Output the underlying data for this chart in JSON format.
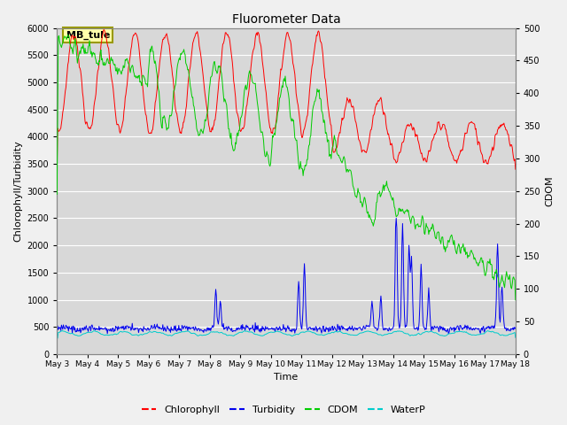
{
  "title": "Fluorometer Data",
  "xlabel": "Time",
  "ylabel_left": "Chlorophyll/Turbidity",
  "ylabel_right": "CDOM",
  "annotation_text": "MB_tule",
  "xlim_days": [
    0,
    15
  ],
  "ylim_left": [
    0,
    6000
  ],
  "ylim_right": [
    0,
    500
  ],
  "xtick_labels": [
    "May 3",
    "May 4",
    "May 5",
    "May 6",
    "May 7",
    "May 8",
    "May 9",
    "May 10",
    "May 11",
    "May 12",
    "May 13",
    "May 14",
    "May 15",
    "May 16",
    "May 17",
    "May 18"
  ],
  "background_color": "#d8d8d8",
  "grid_color": "#ffffff",
  "fig_facecolor": "#f0f0f0",
  "colors": {
    "chlorophyll": "#ff0000",
    "turbidity": "#0000ee",
    "cdom": "#00cc00",
    "waterp": "#00cccc"
  },
  "legend_labels": [
    "Chlorophyll",
    "Turbidity",
    "CDOM",
    "WaterP"
  ]
}
